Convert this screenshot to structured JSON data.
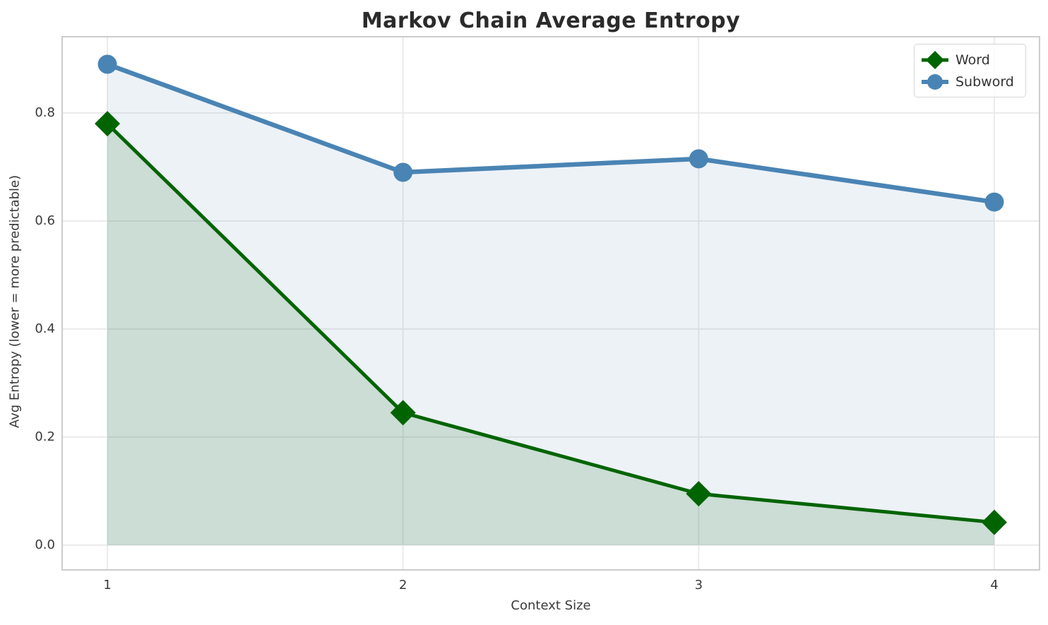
{
  "chart_data": {
    "type": "line",
    "title": "Markov Chain Average Entropy",
    "xlabel": "Context Size",
    "ylabel": "Avg Entropy (lower = more predictable)",
    "x": [
      1,
      2,
      3,
      4
    ],
    "x_tick_labels": [
      "1",
      "2",
      "3",
      "4"
    ],
    "y_ticks": [
      0.0,
      0.2,
      0.4,
      0.6,
      0.8
    ],
    "y_tick_labels": [
      "0.0",
      "0.2",
      "0.4",
      "0.6",
      "0.8"
    ],
    "xlim": [
      0.847,
      4.153
    ],
    "ylim": [
      -0.046,
      0.941
    ],
    "grid": true,
    "legend_position": "upper right",
    "series": [
      {
        "name": "Word",
        "values": [
          0.78,
          0.245,
          0.095,
          0.042
        ],
        "color": "#006400",
        "marker": "diamond",
        "marker_size": 18,
        "line_width": 5,
        "fill_to_zero": true,
        "fill_opacity": 0.14
      },
      {
        "name": "Subword",
        "values": [
          0.89,
          0.69,
          0.715,
          0.635
        ],
        "color": "#4a84b4",
        "marker": "circle",
        "marker_size": 13.5,
        "line_width": 6.5,
        "fill_to_zero": true,
        "fill_opacity": 0.1
      }
    ]
  }
}
